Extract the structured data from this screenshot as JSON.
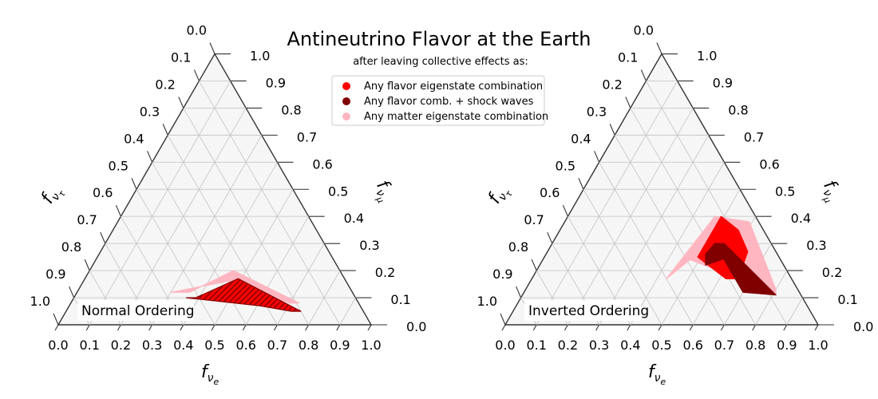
{
  "figure": {
    "title": "Antineutrino Flavor at the Earth",
    "subtitle": "after leaving collective effects as:"
  },
  "legend": [
    {
      "label": "Any flavor eigenstate combination",
      "color": "#ff0000"
    },
    {
      "label": "Any flavor comb. + shock waves",
      "color": "#800000"
    },
    {
      "label": "Any matter eigenstate combination",
      "color": "#ffb6c1"
    }
  ],
  "axes": {
    "bottom": {
      "label_main": "f",
      "label_sub": "ν",
      "label_subsub": "e"
    },
    "left": {
      "label_main": "f",
      "label_sub": "ν",
      "label_subsub": "τ"
    },
    "right": {
      "label_main": "f",
      "label_sub": "ν",
      "label_subsub": "μ"
    },
    "tick_labels": [
      "0.0",
      "0.1",
      "0.2",
      "0.3",
      "0.4",
      "0.5",
      "0.6",
      "0.7",
      "0.8",
      "0.9",
      "1.0"
    ]
  },
  "colors": {
    "flavor": "#ff0000",
    "shock": "#800000",
    "matter": "#ffb6c1",
    "frame_fill": "#f6f6f6"
  },
  "chart_data": [
    {
      "type": "ternary-region",
      "panel_label": "Normal Ordering",
      "axes": [
        "f_νe",
        "f_νμ",
        "f_ντ"
      ],
      "regions": [
        {
          "name": "Any matter eigenstate combination",
          "color": "#ffb6c1",
          "points": [
            [
              0.3,
              0.12,
              0.58
            ],
            [
              0.36,
              0.12,
              0.52
            ],
            [
              0.46,
              0.2,
              0.34
            ],
            [
              0.73,
              0.08,
              0.19
            ],
            [
              0.7,
              0.08,
              0.22
            ],
            [
              0.46,
              0.16,
              0.38
            ]
          ]
        },
        {
          "name": "Any flavor eigenstate combination",
          "color": "#ff0000",
          "points": [
            [
              0.36,
              0.1,
              0.54
            ],
            [
              0.39,
              0.1,
              0.51
            ],
            [
              0.49,
              0.17,
              0.34
            ],
            [
              0.75,
              0.05,
              0.2
            ],
            [
              0.72,
              0.05,
              0.23
            ],
            [
              0.61,
              0.07,
              0.32
            ]
          ]
        },
        {
          "name": "Any flavor comb. + shock waves",
          "color": "#800000",
          "hatched": true,
          "points": [
            [
              0.36,
              0.1,
              0.54
            ],
            [
              0.39,
              0.1,
              0.51
            ],
            [
              0.49,
              0.17,
              0.34
            ],
            [
              0.75,
              0.05,
              0.2
            ],
            [
              0.72,
              0.05,
              0.23
            ],
            [
              0.61,
              0.07,
              0.32
            ]
          ]
        }
      ]
    },
    {
      "type": "ternary-region",
      "panel_label": "Inverted Ordering",
      "axes": [
        "f_νe",
        "f_νμ",
        "f_ντ"
      ],
      "regions": [
        {
          "name": "Any matter eigenstate combination",
          "color": "#ffb6c1",
          "points": [
            [
              0.43,
              0.17,
              0.4
            ],
            [
              0.47,
              0.4,
              0.13
            ],
            [
              0.59,
              0.38,
              0.03
            ],
            [
              0.8,
              0.13,
              0.07
            ],
            [
              0.81,
              0.11,
              0.08
            ],
            [
              0.64,
              0.18,
              0.18
            ],
            [
              0.47,
              0.24,
              0.29
            ]
          ]
        },
        {
          "name": "Any flavor eigenstate combination",
          "color": "#ff0000",
          "points": [
            [
              0.49,
              0.4,
              0.11
            ],
            [
              0.57,
              0.35,
              0.08
            ],
            [
              0.64,
              0.27,
              0.09
            ],
            [
              0.66,
              0.17,
              0.17
            ],
            [
              0.62,
              0.17,
              0.21
            ],
            [
              0.49,
              0.25,
              0.26
            ]
          ]
        },
        {
          "name": "Any flavor comb. + shock waves",
          "color": "#800000",
          "points": [
            [
              0.52,
              0.3,
              0.18
            ],
            [
              0.55,
              0.3,
              0.15
            ],
            [
              0.81,
              0.11,
              0.08
            ],
            [
              0.7,
              0.12,
              0.18
            ]
          ]
        },
        {
          "name": "Any flavor comb. + shock waves",
          "color": "#800000",
          "points": [
            [
              0.52,
              0.3,
              0.18
            ],
            [
              0.59,
              0.25,
              0.16
            ],
            [
              0.53,
              0.22,
              0.25
            ],
            [
              0.51,
              0.26,
              0.23
            ]
          ]
        }
      ]
    }
  ]
}
